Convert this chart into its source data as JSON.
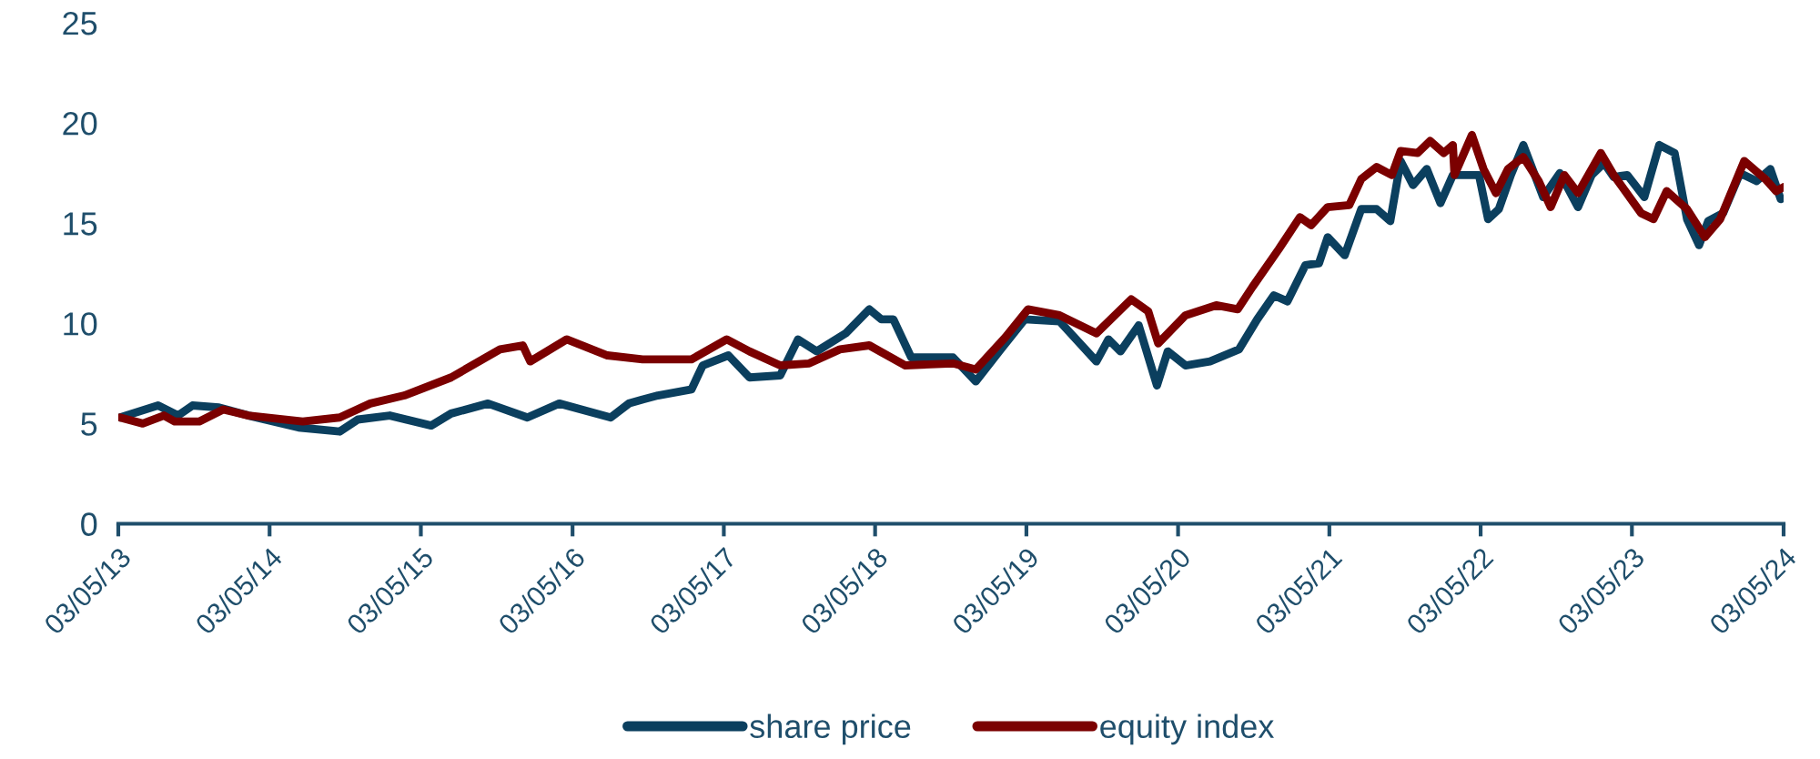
{
  "chart_data": {
    "type": "line",
    "xlim": [
      "2013-05-03",
      "2024-05-03"
    ],
    "xticks": [
      {
        "value": "2013-05-03",
        "label": "03/05/13"
      },
      {
        "value": "2014-05-03",
        "label": "03/05/14"
      },
      {
        "value": "2015-05-03",
        "label": "03/05/15"
      },
      {
        "value": "2016-05-03",
        "label": "03/05/16"
      },
      {
        "value": "2017-05-03",
        "label": "03/05/17"
      },
      {
        "value": "2018-05-03",
        "label": "03/05/18"
      },
      {
        "value": "2019-05-03",
        "label": "03/05/19"
      },
      {
        "value": "2020-05-03",
        "label": "03/05/20"
      },
      {
        "value": "2021-05-03",
        "label": "03/05/21"
      },
      {
        "value": "2022-05-03",
        "label": "03/05/22"
      },
      {
        "value": "2023-05-03",
        "label": "03/05/23"
      },
      {
        "value": "2024-05-03",
        "label": "03/05/24"
      }
    ],
    "ylim": [
      0,
      25
    ],
    "yticks": [
      0,
      5,
      10,
      15,
      20,
      25
    ],
    "grid": false,
    "legend": "bottom",
    "line_style": "solid",
    "marker": "none",
    "series": [
      {
        "name": "share price",
        "color": "#0b3f5e",
        "x": [
          "2013-05-07",
          "2013-08-07",
          "2013-09-24",
          "2013-10-29",
          "2014-01-01",
          "2014-03-13",
          "2014-07-12",
          "2014-10-19",
          "2014-12-02",
          "2015-02-17",
          "2015-05-28",
          "2015-07-15",
          "2015-10-12",
          "2016-01-15",
          "2016-04-01",
          "2016-08-03",
          "2016-09-16",
          "2016-10-19",
          "2016-11-25",
          "2017-02-14",
          "2017-03-13",
          "2017-05-14",
          "2017-07-04",
          "2017-09-16",
          "2017-10-29",
          "2017-12-13",
          "2018-02-21",
          "2018-04-19",
          "2018-05-18",
          "2018-06-16",
          "2018-07-29",
          "2018-11-07",
          "2019-01-01",
          "2019-03-02",
          "2019-04-29",
          "2019-07-22",
          "2019-10-19",
          "2019-11-17",
          "2019-12-16",
          "2020-01-29",
          "2020-03-13",
          "2020-04-08",
          "2020-05-21",
          "2020-07-19",
          "2020-09-27",
          "2020-11-10",
          "2020-12-20",
          "2021-01-22",
          "2021-03-06",
          "2021-04-08",
          "2021-04-29",
          "2021-06-09",
          "2021-07-19",
          "2021-08-25",
          "2021-09-27",
          "2021-10-22",
          "2021-11-21",
          "2021-12-24",
          "2022-01-26",
          "2022-02-25",
          "2022-04-29",
          "2022-05-21",
          "2022-06-16",
          "2022-07-15",
          "2022-08-14",
          "2022-10-01",
          "2022-11-10",
          "2022-12-24",
          "2023-01-26",
          "2023-02-25",
          "2023-03-20",
          "2023-04-22",
          "2023-06-02",
          "2023-07-08",
          "2023-08-14",
          "2023-09-13",
          "2023-10-12",
          "2023-11-03",
          "2023-12-09",
          "2024-01-19",
          "2024-02-28",
          "2024-04-01",
          "2024-04-26"
        ],
        "values": [
          5.3,
          5.9,
          5.4,
          5.9,
          5.8,
          5.4,
          4.8,
          4.6,
          5.2,
          5.4,
          4.9,
          5.5,
          6.0,
          5.3,
          6.0,
          5.3,
          6.0,
          6.2,
          6.4,
          6.7,
          7.9,
          8.4,
          7.3,
          7.4,
          9.2,
          8.6,
          9.5,
          10.7,
          10.2,
          10.2,
          8.3,
          8.3,
          7.1,
          8.7,
          10.2,
          10.1,
          8.1,
          9.2,
          8.6,
          9.9,
          6.9,
          8.6,
          7.9,
          8.1,
          8.7,
          10.2,
          11.4,
          11.1,
          12.9,
          13.0,
          14.3,
          13.4,
          15.7,
          15.7,
          15.1,
          18.1,
          16.9,
          17.7,
          16.0,
          17.4,
          17.4,
          15.2,
          15.7,
          17.4,
          18.9,
          16.3,
          17.5,
          15.8,
          17.4,
          18.0,
          17.3,
          17.4,
          16.3,
          18.9,
          18.5,
          15.2,
          13.9,
          15.1,
          15.5,
          17.5,
          17.1,
          17.7,
          16.2
        ]
      },
      {
        "name": "equity index",
        "color": "#7b0000",
        "x": [
          "2013-05-07",
          "2013-07-01",
          "2013-08-21",
          "2013-09-16",
          "2013-11-14",
          "2014-01-11",
          "2014-03-13",
          "2014-07-22",
          "2014-10-19",
          "2015-01-01",
          "2015-03-24",
          "2015-07-15",
          "2015-11-10",
          "2016-01-04",
          "2016-01-22",
          "2016-04-19",
          "2016-07-26",
          "2016-10-19",
          "2016-11-25",
          "2017-02-14",
          "2017-05-10",
          "2017-07-04",
          "2017-09-16",
          "2017-11-25",
          "2018-02-07",
          "2018-04-19",
          "2018-07-15",
          "2018-11-07",
          "2019-01-01",
          "2019-03-13",
          "2019-05-07",
          "2019-07-22",
          "2019-10-19",
          "2020-01-11",
          "2020-02-21",
          "2020-03-16",
          "2020-05-21",
          "2020-08-03",
          "2020-09-24",
          "2020-10-29",
          "2021-01-01",
          "2021-02-21",
          "2021-03-20",
          "2021-04-29",
          "2021-06-20",
          "2021-07-19",
          "2021-08-25",
          "2021-10-01",
          "2021-10-22",
          "2021-12-02",
          "2022-01-01",
          "2022-02-03",
          "2022-02-25",
          "2022-03-01",
          "2022-04-12",
          "2022-05-10",
          "2022-06-09",
          "2022-07-08",
          "2022-08-14",
          "2022-09-20",
          "2022-10-19",
          "2022-11-21",
          "2022-12-24",
          "2023-02-17",
          "2023-03-20",
          "2023-05-25",
          "2023-06-24",
          "2023-07-26",
          "2023-09-13",
          "2023-10-26",
          "2023-12-02",
          "2024-01-29",
          "2024-03-20",
          "2024-04-15",
          "2024-05-03"
        ],
        "values": [
          5.3,
          5.0,
          5.4,
          5.1,
          5.1,
          5.7,
          5.4,
          5.1,
          5.3,
          6.0,
          6.4,
          7.3,
          8.7,
          8.9,
          8.1,
          9.2,
          8.4,
          8.2,
          8.2,
          8.2,
          9.2,
          8.6,
          7.9,
          8.0,
          8.7,
          8.9,
          7.9,
          8.0,
          7.7,
          9.3,
          10.7,
          10.4,
          9.5,
          11.2,
          10.6,
          9.0,
          10.4,
          10.9,
          10.7,
          11.8,
          13.7,
          15.3,
          14.9,
          15.8,
          15.9,
          17.2,
          17.8,
          17.4,
          18.6,
          18.5,
          19.1,
          18.5,
          18.9,
          17.4,
          19.4,
          17.7,
          16.5,
          17.7,
          18.3,
          17.1,
          15.8,
          17.4,
          16.5,
          18.5,
          17.4,
          15.5,
          15.2,
          16.6,
          15.7,
          14.3,
          15.2,
          18.1,
          17.2,
          16.6,
          16.8
        ]
      }
    ]
  }
}
